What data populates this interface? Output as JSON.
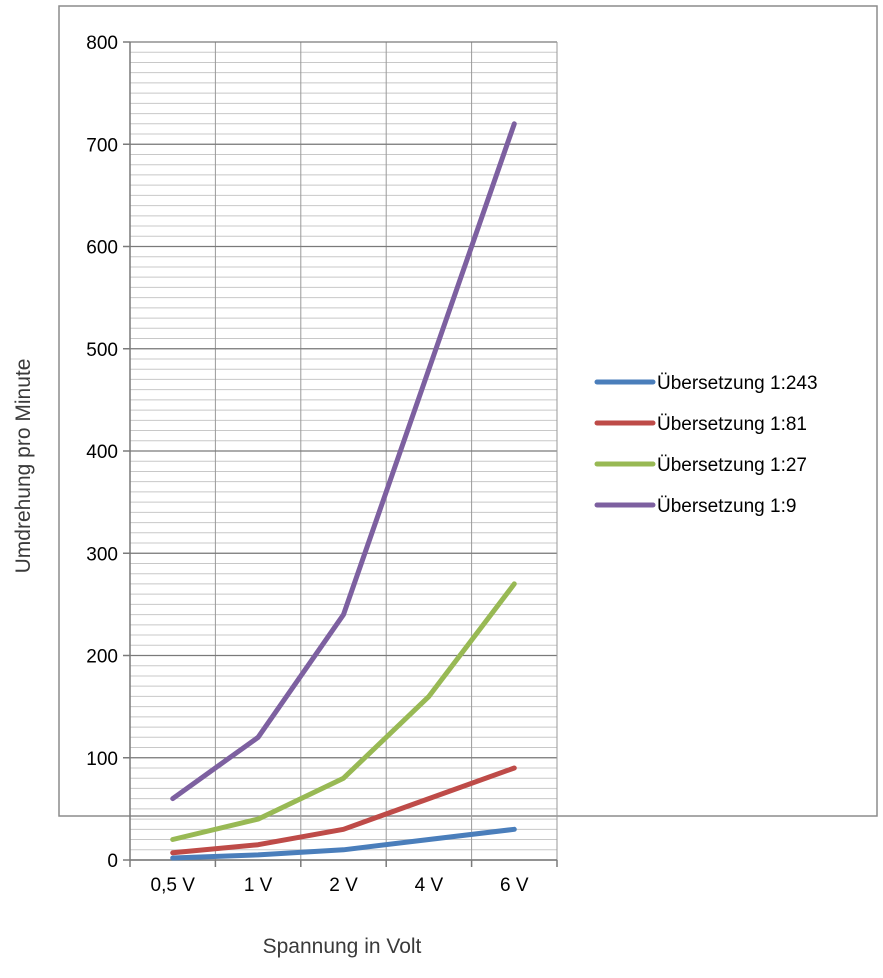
{
  "chart_data": {
    "type": "line",
    "title": "",
    "xlabel": "Spannung in Volt",
    "ylabel": "Umdrehung pro Minute",
    "categories": [
      "0,5 V",
      "1 V",
      "2 V",
      "4 V",
      "6 V"
    ],
    "ylim": [
      0,
      800
    ],
    "yticks": [
      0,
      100,
      200,
      300,
      400,
      500,
      600,
      700,
      800
    ],
    "minor_gridlines": true,
    "legend_position": "right",
    "series": [
      {
        "name": "Übersetzung 1:243",
        "color": "#4a7ebb",
        "values": [
          2,
          5,
          10,
          20,
          30
        ]
      },
      {
        "name": "Übersetzung 1:81",
        "color": "#be4b48",
        "values": [
          7,
          15,
          30,
          60,
          90
        ]
      },
      {
        "name": "Übersetzung 1:27",
        "color": "#98b954",
        "values": [
          20,
          40,
          80,
          160,
          270
        ]
      },
      {
        "name": "Übersetzung 1:9",
        "color": "#7d60a0",
        "values": [
          60,
          120,
          240,
          480,
          720
        ]
      }
    ]
  }
}
